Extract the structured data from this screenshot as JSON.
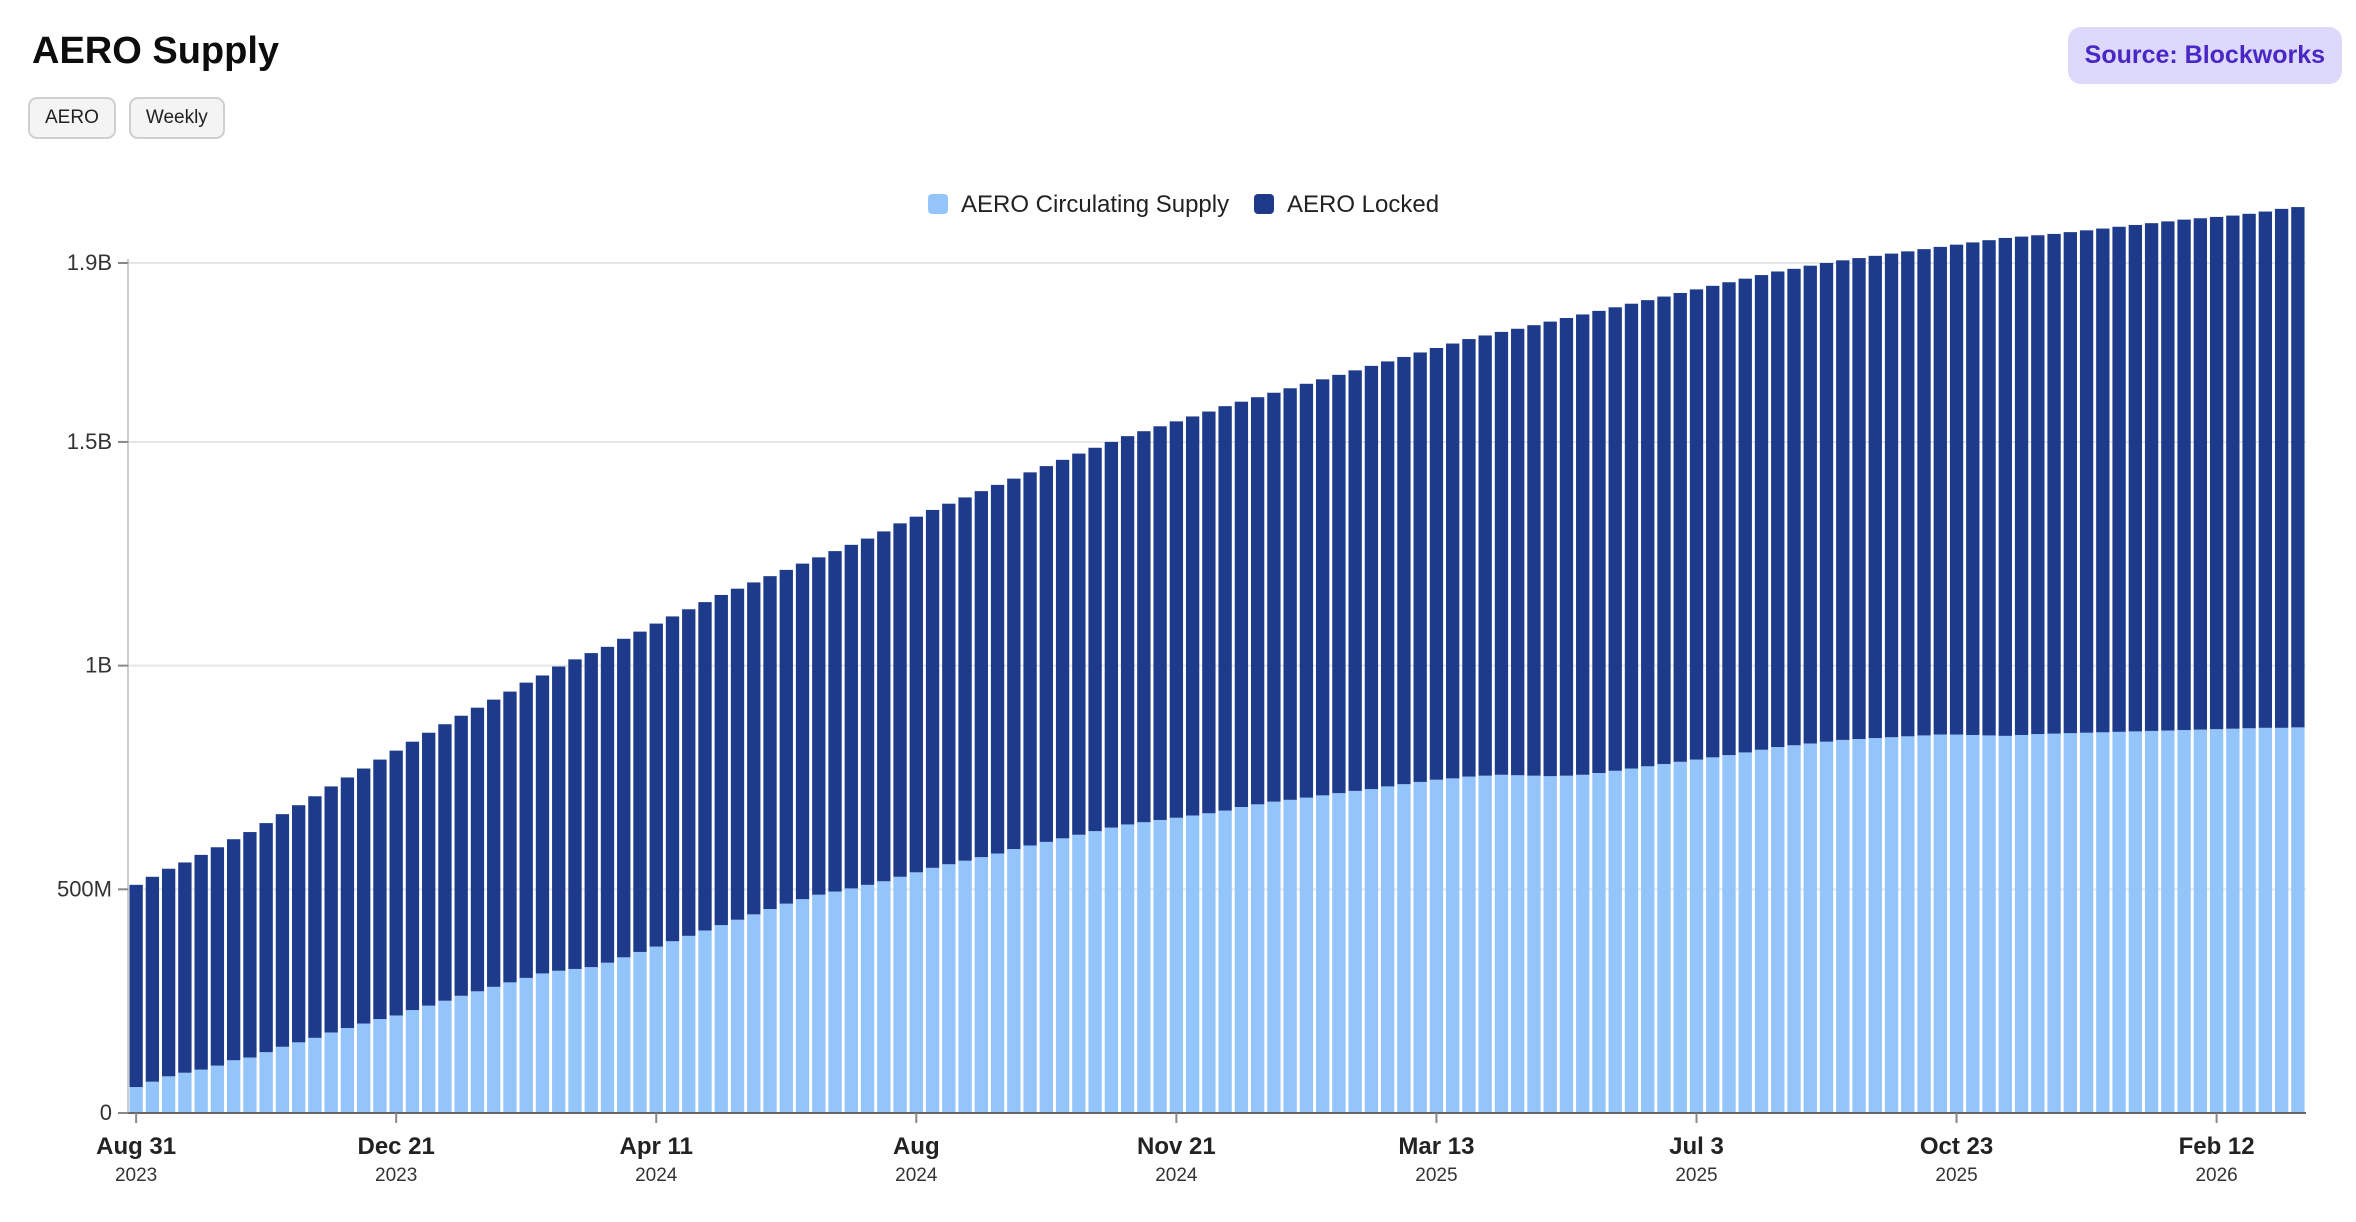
{
  "header": {
    "title": "AERO Supply",
    "pills": [
      "AERO",
      "Weekly"
    ],
    "source_label": "Source: Blockworks"
  },
  "colors": {
    "circulating": "#93c5fb",
    "locked": "#1e3a8a",
    "grid": "#e6e6e6",
    "axis": "#333333"
  },
  "chart_data": {
    "type": "bar",
    "stacked": true,
    "title": "",
    "xlabel": "",
    "ylabel": "",
    "ylim": [
      0,
      1900000000
    ],
    "grid": true,
    "legend_position": "top-center",
    "y_ticks": [
      {
        "value": 0,
        "label": "0"
      },
      {
        "value": 500000000,
        "label": "500M"
      },
      {
        "value": 1000000000,
        "label": "1B"
      },
      {
        "value": 1500000000,
        "label": "1.5B"
      },
      {
        "value": 1900000000,
        "label": "1.9B"
      }
    ],
    "x_ticks": [
      {
        "label": "Aug 31",
        "year": "2023"
      },
      {
        "label": "Dec 21",
        "year": "2023"
      },
      {
        "label": "Apr 11",
        "year": "2024"
      },
      {
        "label": "Aug",
        "year": "2024"
      },
      {
        "label": "Nov 21",
        "year": "2024"
      },
      {
        "label": "Mar 13",
        "year": "2025"
      },
      {
        "label": "Jul 3",
        "year": "2025"
      },
      {
        "label": "Oct 23",
        "year": "2025"
      },
      {
        "label": "Feb 12",
        "year": "2026"
      }
    ],
    "x_start": "2023-08-31",
    "x_interval": "weekly",
    "series": [
      {
        "name": "AERO Circulating Supply",
        "values": [
          58,
          70,
          82,
          90,
          97,
          106,
          118,
          124,
          136,
          148,
          158,
          168,
          180,
          190,
          200,
          210,
          218,
          230,
          240,
          251,
          262,
          272,
          282,
          292,
          302,
          312,
          318,
          322,
          326,
          336,
          348,
          360,
          372,
          384,
          396,
          408,
          420,
          432,
          444,
          456,
          468,
          478,
          488,
          495,
          502,
          510,
          518,
          528,
          538,
          548,
          556,
          564,
          572,
          580,
          590,
          598,
          606,
          614,
          622,
          630,
          638,
          645,
          650,
          655,
          660,
          665,
          670,
          676,
          684,
          690,
          696,
          700,
          705,
          710,
          715,
          720,
          724,
          730,
          735,
          740,
          745,
          748,
          752,
          754,
          756,
          755,
          754,
          753,
          754,
          756,
          760,
          765,
          770,
          775,
          780,
          785,
          790,
          795,
          800,
          806,
          812,
          818,
          822,
          826,
          830,
          834,
          836,
          838,
          840,
          842,
          844,
          846,
          846,
          845,
          844,
          843,
          845,
          847,
          848,
          849,
          850,
          851,
          852,
          853,
          854,
          855,
          856,
          857,
          858,
          859,
          860,
          861,
          861,
          862
        ]
      },
      {
        "name": "AERO Locked",
        "values": [
          452,
          458,
          464,
          470,
          480,
          488,
          494,
          504,
          512,
          520,
          530,
          540,
          550,
          560,
          570,
          580,
          592,
          600,
          610,
          618,
          626,
          634,
          642,
          650,
          660,
          666,
          680,
          692,
          702,
          706,
          712,
          716,
          722,
          726,
          730,
          734,
          738,
          740,
          742,
          744,
          746,
          750,
          754,
          761,
          768,
          774,
          782,
          790,
          795,
          800,
          806,
          812,
          818,
          824,
          828,
          834,
          840,
          846,
          852,
          857,
          862,
          868,
          874,
          880,
          886,
          892,
          898,
          904,
          906,
          910,
          914,
          920,
          925,
          930,
          935,
          940,
          946,
          950,
          955,
          960,
          965,
          972,
          978,
          984,
          990,
          998,
          1007,
          1016,
          1023,
          1029,
          1033,
          1036,
          1039,
          1042,
          1045,
          1048,
          1051,
          1054,
          1057,
          1059,
          1061,
          1063,
          1065,
          1068,
          1070,
          1072,
          1075,
          1078,
          1081,
          1084,
          1087,
          1090,
          1095,
          1101,
          1107,
          1113,
          1114,
          1115,
          1117,
          1120,
          1123,
          1126,
          1129,
          1132,
          1135,
          1138,
          1141,
          1143,
          1145,
          1147,
          1150,
          1154,
          1160,
          1163
        ]
      }
    ]
  }
}
